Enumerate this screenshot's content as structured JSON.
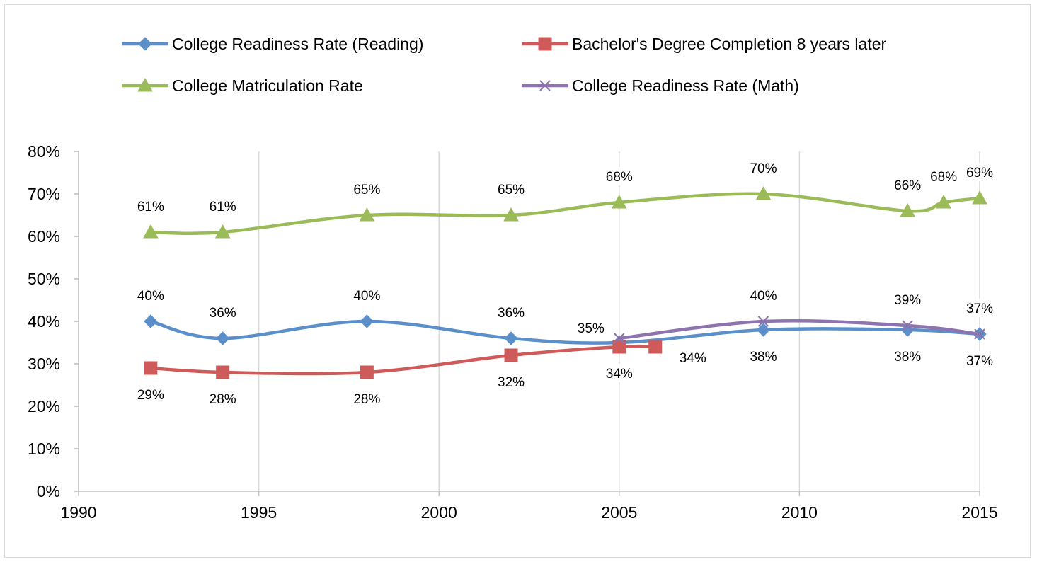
{
  "chart_data": {
    "type": "line",
    "title": "",
    "xlabel": "",
    "ylabel": "",
    "xlim": [
      1990,
      2015
    ],
    "ylim": [
      0,
      0.8
    ],
    "x_ticks": [
      1990,
      1995,
      2000,
      2005,
      2010,
      2015
    ],
    "x_tick_labels": [
      "1990",
      "1995",
      "2000",
      "2005",
      "2010",
      "2015"
    ],
    "y_ticks": [
      0,
      0.1,
      0.2,
      0.3,
      0.4,
      0.5,
      0.6,
      0.7,
      0.8
    ],
    "y_tick_labels": [
      "0%",
      "10%",
      "20%",
      "30%",
      "40%",
      "50%",
      "60%",
      "70%",
      "80%"
    ],
    "grid": "vertical",
    "legend_position": "top",
    "smoothed": true,
    "series": [
      {
        "name": "College Readiness Rate (Reading)",
        "color": "#5b8fc9",
        "marker": "diamond",
        "x": [
          1992,
          1994,
          1998,
          2002,
          2005,
          2009,
          2013,
          2015
        ],
        "y": [
          0.4,
          0.36,
          0.4,
          0.36,
          0.35,
          0.38,
          0.38,
          0.37
        ],
        "labels": [
          "40%",
          "36%",
          "40%",
          "36%",
          "35%",
          "38%",
          "38%",
          "37%"
        ],
        "label_positions": [
          "above",
          "above",
          "above",
          "above",
          "above-left",
          "below",
          "below",
          "below"
        ]
      },
      {
        "name": "Bachelor's Degree Completion 8 years later",
        "color": "#cf5a5a",
        "marker": "square",
        "x": [
          1992,
          1994,
          1998,
          2002,
          2005,
          2006
        ],
        "y": [
          0.29,
          0.28,
          0.28,
          0.32,
          0.34,
          0.34
        ],
        "labels": [
          "29%",
          "28%",
          "28%",
          "32%",
          "34%",
          "34%"
        ],
        "label_positions": [
          "below",
          "below",
          "below",
          "below",
          "below",
          "below-right"
        ]
      },
      {
        "name": "College Matriculation Rate",
        "color": "#9bbb59",
        "marker": "triangle",
        "x": [
          1992,
          1994,
          1998,
          2002,
          2005,
          2009,
          2013,
          2014,
          2015
        ],
        "y": [
          0.61,
          0.61,
          0.65,
          0.65,
          0.68,
          0.7,
          0.66,
          0.68,
          0.69
        ],
        "labels": [
          "61%",
          "61%",
          "65%",
          "65%",
          "68%",
          "70%",
          "66%",
          "68%",
          "69%"
        ],
        "label_positions": [
          "above",
          "above",
          "above",
          "above",
          "above",
          "above",
          "above",
          "above",
          "above"
        ]
      },
      {
        "name": "College Readiness Rate (Math)",
        "color": "#8e74ae",
        "marker": "x",
        "x": [
          2005,
          2009,
          2013,
          2015
        ],
        "y": [
          0.36,
          0.4,
          0.39,
          0.37
        ],
        "labels": [
          "",
          "40%",
          "39%",
          "37%"
        ],
        "label_positions": [
          "none",
          "above",
          "above",
          "above"
        ]
      }
    ]
  }
}
